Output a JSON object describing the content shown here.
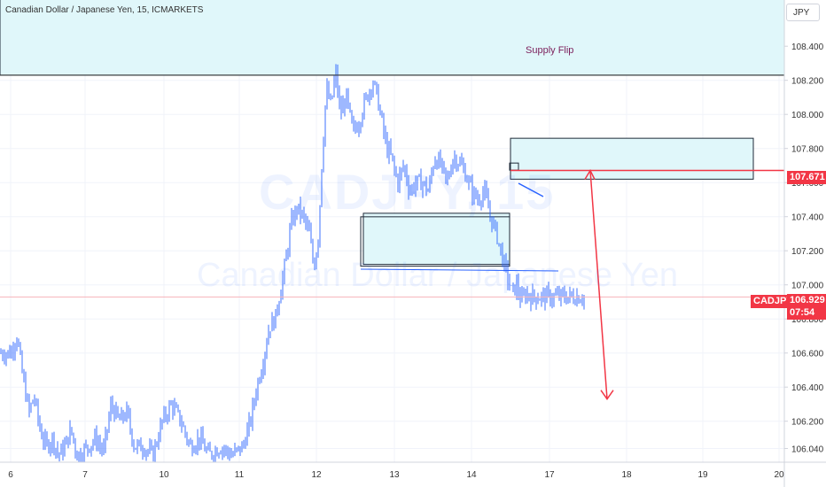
{
  "header": {
    "symbol_line": "Canadian Dollar / Japanese Yen, 15, ICMARKETS",
    "currency": "JPY"
  },
  "watermark": {
    "symbol": "CADJPY, 15",
    "description": "Canadian Dollar / Japanese Yen"
  },
  "annotations": {
    "supply_label": "Supply Flip"
  },
  "price_tags": {
    "level_price": "107.671",
    "symbol": "CADJPY",
    "last_price": "106.929",
    "countdown": "07:54"
  },
  "colors": {
    "candle": "#2962ff",
    "zone_fill": "#e0f7fa",
    "zone_border": "#1e2a38",
    "arrow": "#f23645",
    "price_tag_bg": "#f23645",
    "supply_text": "#7b1e5a"
  },
  "chart_data": {
    "type": "candlestick",
    "symbol": "CADJPY",
    "timeframe": "15",
    "exchange": "ICMARKETS",
    "y_axis": {
      "range": [
        105.98,
        109.0
      ],
      "ticks": [
        "106.040",
        "106.200",
        "106.400",
        "106.600",
        "106.800",
        "107.000",
        "107.200",
        "107.400",
        "107.600",
        "107.800",
        "108.000",
        "108.200",
        "108.400"
      ]
    },
    "x_axis": {
      "ticks": [
        "6",
        "7",
        "10",
        "11",
        "12",
        "13",
        "14",
        "17",
        "18",
        "19",
        "20"
      ]
    },
    "price_path": [
      [
        0,
        106.6
      ],
      [
        0.08,
        106.7
      ],
      [
        0.16,
        106.45
      ],
      [
        0.24,
        106.25
      ],
      [
        0.3,
        106.35
      ],
      [
        0.38,
        106.15
      ],
      [
        0.46,
        106.05
      ],
      [
        0.54,
        106.1
      ],
      [
        0.62,
        106.0
      ],
      [
        0.7,
        106.05
      ],
      [
        0.78,
        106.15
      ],
      [
        0.86,
        106.0
      ],
      [
        1.0,
        106.05
      ],
      [
        1.1,
        106.1
      ],
      [
        1.2,
        106.02
      ],
      [
        1.3,
        106.3
      ],
      [
        1.4,
        106.2
      ],
      [
        1.5,
        106.25
      ],
      [
        1.6,
        106.05
      ],
      [
        1.72,
        106.05
      ],
      [
        1.84,
        106.0
      ],
      [
        1.96,
        106.2
      ],
      [
        2.08,
        106.3
      ],
      [
        2.2,
        106.2
      ],
      [
        2.32,
        106.05
      ],
      [
        2.44,
        106.1
      ],
      [
        2.56,
        106.0
      ],
      [
        2.72,
        106.05
      ],
      [
        2.86,
        106.0
      ],
      [
        3.0,
        106.05
      ],
      [
        3.1,
        106.2
      ],
      [
        3.18,
        106.4
      ],
      [
        3.26,
        106.55
      ],
      [
        3.34,
        106.75
      ],
      [
        3.42,
        106.8
      ],
      [
        3.5,
        107.0
      ],
      [
        3.56,
        107.15
      ],
      [
        3.62,
        107.35
      ],
      [
        3.7,
        107.45
      ],
      [
        3.78,
        107.4
      ],
      [
        3.86,
        107.3
      ],
      [
        3.92,
        107.1
      ],
      [
        3.98,
        107.3
      ],
      [
        4.02,
        107.7
      ],
      [
        4.08,
        108.15
      ],
      [
        4.14,
        108.05
      ],
      [
        4.2,
        108.25
      ],
      [
        4.26,
        108.0
      ],
      [
        4.34,
        108.1
      ],
      [
        4.42,
        107.9
      ],
      [
        4.5,
        107.95
      ],
      [
        4.56,
        108.05
      ],
      [
        4.62,
        108.12
      ],
      [
        4.68,
        108.2
      ],
      [
        4.74,
        108.1
      ],
      [
        4.8,
        107.95
      ],
      [
        4.86,
        107.8
      ],
      [
        4.92,
        107.75
      ],
      [
        5.0,
        107.6
      ],
      [
        5.08,
        107.7
      ],
      [
        5.16,
        107.55
      ],
      [
        5.24,
        107.6
      ],
      [
        5.32,
        107.6
      ],
      [
        5.4,
        107.55
      ],
      [
        5.48,
        107.75
      ],
      [
        5.56,
        107.7
      ],
      [
        5.64,
        107.6
      ],
      [
        5.72,
        107.75
      ],
      [
        5.8,
        107.72
      ],
      [
        5.88,
        107.65
      ],
      [
        5.96,
        107.55
      ],
      [
        6.04,
        107.5
      ],
      [
        6.12,
        107.55
      ],
      [
        6.2,
        107.4
      ],
      [
        6.28,
        107.3
      ],
      [
        6.36,
        107.15
      ],
      [
        6.42,
        107.05
      ],
      [
        6.48,
        106.95
      ],
      [
        6.54,
        107.0
      ],
      [
        6.6,
        106.9
      ],
      [
        6.66,
        106.95
      ],
      [
        6.72,
        106.93
      ]
    ],
    "last_price": 106.929,
    "horizontal_levels": [
      107.671,
      106.929
    ],
    "zones": [
      {
        "label": "Supply Flip",
        "top": 108.83,
        "bottom": 108.23
      },
      {
        "label": "",
        "top": 107.86,
        "bottom": 107.62
      },
      {
        "label": "",
        "top": 107.42,
        "bottom": 107.12
      }
    ],
    "projected_path": [
      [
        107.671
      ],
      [
        106.33
      ]
    ]
  }
}
